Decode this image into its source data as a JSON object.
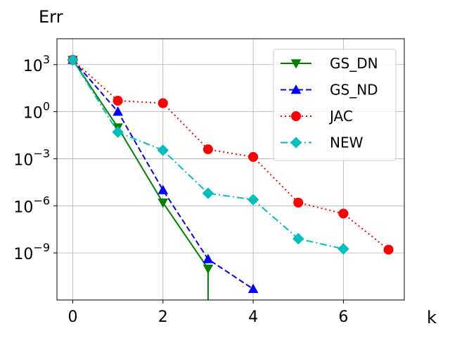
{
  "chart_data": {
    "type": "line",
    "xlabel": "k",
    "ylabel": "Err",
    "y_scale": "log",
    "grid": true,
    "legend_position": "upper right",
    "xlim": [
      -0.35,
      7.35
    ],
    "ylim_log10": [
      -12,
      4.65
    ],
    "x_ticks": [
      {
        "value": 0,
        "label": "0"
      },
      {
        "value": 2,
        "label": "2"
      },
      {
        "value": 4,
        "label": "4"
      },
      {
        "value": 6,
        "label": "6"
      }
    ],
    "y_ticks": [
      {
        "exp": 3,
        "base": "10",
        "power": "3"
      },
      {
        "exp": 0,
        "base": "10",
        "power": "0"
      },
      {
        "exp": -3,
        "base": "10",
        "power": "−3"
      },
      {
        "exp": -6,
        "base": "10",
        "power": "−6"
      },
      {
        "exp": -9,
        "base": "10",
        "power": "−9"
      }
    ],
    "series": [
      {
        "name": "GS_DN",
        "color": "#008000",
        "dash": "solid",
        "marker": "triangle-down",
        "x": [
          0,
          1,
          2,
          3
        ],
        "y": [
          2000,
          0.1,
          1.6e-06,
          1e-10
        ],
        "drop_to_bottom": true
      },
      {
        "name": "GS_ND",
        "color": "#0000ff",
        "dash": "dashed",
        "marker": "triangle-up",
        "x": [
          0,
          1,
          2,
          3,
          4
        ],
        "y": [
          2000,
          1.0,
          1e-05,
          4e-10,
          5e-12
        ]
      },
      {
        "name": "JAC",
        "color": "#ff0000",
        "dash": "dotted",
        "marker": "circle",
        "x": [
          0,
          1,
          2,
          3,
          4,
          5,
          6,
          7
        ],
        "y": [
          2000,
          5.0,
          3.5,
          0.004,
          0.0013,
          1.6e-06,
          3.2e-07,
          1.6e-09
        ]
      },
      {
        "name": "NEW",
        "color": "#00bfbf",
        "dash": "dashdot",
        "marker": "diamond",
        "x": [
          0,
          1,
          2,
          3,
          4,
          5,
          6
        ],
        "y": [
          2000,
          0.05,
          0.0035,
          6.3e-06,
          2.5e-06,
          8e-09,
          1.8e-09
        ]
      }
    ]
  }
}
